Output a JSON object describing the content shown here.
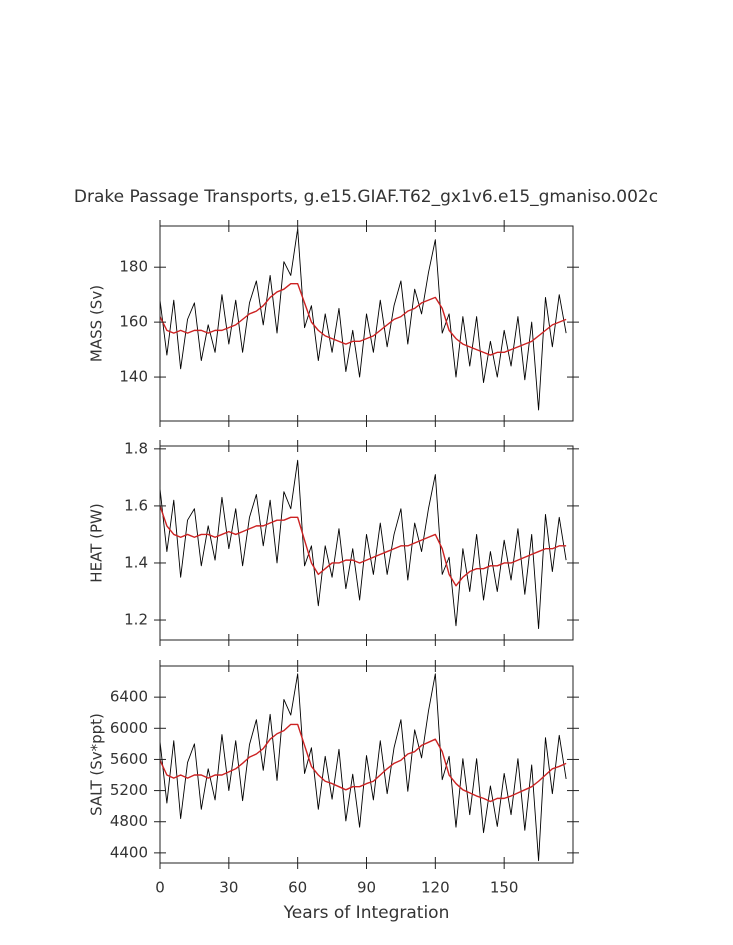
{
  "chart_data": [
    {
      "type": "line",
      "title": "Drake Passage Transports, g.e15.GIAF.T62_gx1v6.e15_gmaniso.002c",
      "ylabel": "MASS (Sv)",
      "x": [
        0,
        3,
        6,
        9,
        12,
        15,
        18,
        21,
        24,
        27,
        30,
        33,
        36,
        39,
        42,
        45,
        48,
        51,
        54,
        57,
        60,
        63,
        66,
        69,
        72,
        75,
        78,
        81,
        84,
        87,
        90,
        93,
        96,
        99,
        102,
        105,
        108,
        111,
        114,
        117,
        120,
        123,
        126,
        129,
        132,
        135,
        138,
        141,
        144,
        147,
        150,
        153,
        156,
        159,
        162,
        165,
        168,
        171,
        174,
        177
      ],
      "xlim": [
        0,
        180
      ],
      "xticks": [
        0,
        30,
        60,
        90,
        120,
        150
      ],
      "ylim": [
        124,
        195
      ],
      "yticks": [
        140,
        160,
        180
      ],
      "series": [
        {
          "color": "#000000",
          "values": [
            168,
            148,
            168,
            143,
            161,
            167,
            146,
            159,
            149,
            170,
            152,
            168,
            149,
            167,
            175,
            159,
            177,
            156,
            182,
            177,
            194,
            158,
            166,
            146,
            163,
            149,
            165,
            142,
            157,
            140,
            163,
            149,
            168,
            151,
            166,
            175,
            152,
            172,
            163,
            178,
            190,
            156,
            163,
            140,
            162,
            144,
            162,
            138,
            153,
            140,
            157,
            144,
            162,
            139,
            160,
            128,
            169,
            151,
            170,
            156
          ]
        },
        {
          "color": "#cc2222",
          "values": [
            162,
            157,
            156,
            157,
            156,
            157,
            157,
            156,
            157,
            157,
            158,
            159,
            161,
            163,
            164,
            166,
            169,
            171,
            172,
            174,
            174,
            167,
            160,
            157,
            155,
            154,
            153,
            152,
            153,
            153,
            154,
            155,
            157,
            159,
            161,
            162,
            164,
            165,
            167,
            168,
            169,
            165,
            157,
            154,
            152,
            151,
            150,
            149,
            148,
            149,
            149,
            150,
            151,
            152,
            153,
            155,
            157,
            159,
            160,
            161
          ]
        }
      ]
    },
    {
      "type": "line",
      "ylabel": "HEAT (PW)",
      "x": [
        0,
        3,
        6,
        9,
        12,
        15,
        18,
        21,
        24,
        27,
        30,
        33,
        36,
        39,
        42,
        45,
        48,
        51,
        54,
        57,
        60,
        63,
        66,
        69,
        72,
        75,
        78,
        81,
        84,
        87,
        90,
        93,
        96,
        99,
        102,
        105,
        108,
        111,
        114,
        117,
        120,
        123,
        126,
        129,
        132,
        135,
        138,
        141,
        144,
        147,
        150,
        153,
        156,
        159,
        162,
        165,
        168,
        171,
        174,
        177
      ],
      "xlim": [
        0,
        180
      ],
      "xticks": [
        0,
        30,
        60,
        90,
        120,
        150
      ],
      "ylim": [
        1.13,
        1.81
      ],
      "yticks": [
        1.2,
        1.4,
        1.6,
        1.8
      ],
      "series": [
        {
          "color": "#000000",
          "values": [
            1.66,
            1.44,
            1.62,
            1.35,
            1.55,
            1.59,
            1.39,
            1.53,
            1.41,
            1.63,
            1.45,
            1.59,
            1.39,
            1.56,
            1.64,
            1.46,
            1.62,
            1.4,
            1.65,
            1.59,
            1.76,
            1.39,
            1.46,
            1.25,
            1.46,
            1.35,
            1.52,
            1.31,
            1.45,
            1.27,
            1.5,
            1.36,
            1.54,
            1.36,
            1.5,
            1.59,
            1.34,
            1.54,
            1.44,
            1.59,
            1.71,
            1.36,
            1.42,
            1.18,
            1.45,
            1.3,
            1.5,
            1.27,
            1.44,
            1.3,
            1.48,
            1.34,
            1.52,
            1.29,
            1.5,
            1.17,
            1.57,
            1.37,
            1.56,
            1.41
          ]
        },
        {
          "color": "#cc2222",
          "values": [
            1.6,
            1.53,
            1.5,
            1.49,
            1.5,
            1.49,
            1.5,
            1.5,
            1.49,
            1.5,
            1.51,
            1.5,
            1.51,
            1.52,
            1.53,
            1.53,
            1.54,
            1.55,
            1.55,
            1.56,
            1.56,
            1.48,
            1.4,
            1.36,
            1.38,
            1.4,
            1.4,
            1.41,
            1.41,
            1.4,
            1.41,
            1.42,
            1.43,
            1.44,
            1.45,
            1.46,
            1.46,
            1.47,
            1.48,
            1.49,
            1.5,
            1.45,
            1.36,
            1.32,
            1.35,
            1.37,
            1.38,
            1.38,
            1.39,
            1.39,
            1.4,
            1.4,
            1.41,
            1.42,
            1.43,
            1.44,
            1.45,
            1.45,
            1.46,
            1.46
          ]
        }
      ]
    },
    {
      "type": "line",
      "ylabel": "SALT (Sv*ppt)",
      "xlabel": "Years of Integration",
      "x": [
        0,
        3,
        6,
        9,
        12,
        15,
        18,
        21,
        24,
        27,
        30,
        33,
        36,
        39,
        42,
        45,
        48,
        51,
        54,
        57,
        60,
        63,
        66,
        69,
        72,
        75,
        78,
        81,
        84,
        87,
        90,
        93,
        96,
        99,
        102,
        105,
        108,
        111,
        114,
        117,
        120,
        123,
        126,
        129,
        132,
        135,
        138,
        141,
        144,
        147,
        150,
        153,
        156,
        159,
        162,
        165,
        168,
        171,
        174,
        177
      ],
      "xlim": [
        0,
        180
      ],
      "xticks": [
        0,
        30,
        60,
        90,
        120,
        150
      ],
      "ylim": [
        4270,
        6800
      ],
      "yticks": [
        4400,
        4800,
        5200,
        5600,
        6000,
        6400
      ],
      "series": [
        {
          "color": "#000000",
          "values": [
            5830,
            5040,
            5840,
            4840,
            5560,
            5800,
            4960,
            5480,
            5080,
            5920,
            5200,
            5840,
            5070,
            5790,
            6110,
            5460,
            6180,
            5330,
            6370,
            6170,
            6700,
            5420,
            5750,
            4960,
            5640,
            5090,
            5730,
            4810,
            5410,
            4730,
            5650,
            5080,
            5840,
            5160,
            5750,
            6110,
            5190,
            5980,
            5620,
            6220,
            6700,
            5340,
            5640,
            4730,
            5610,
            4890,
            5610,
            4660,
            5260,
            4740,
            5420,
            4890,
            5610,
            4690,
            5530,
            4300,
            5880,
            5160,
            5910,
            5350
          ]
        },
        {
          "color": "#cc2222",
          "values": [
            5590,
            5400,
            5360,
            5400,
            5360,
            5400,
            5400,
            5360,
            5400,
            5400,
            5440,
            5480,
            5550,
            5630,
            5670,
            5740,
            5860,
            5930,
            5970,
            6050,
            6050,
            5780,
            5510,
            5400,
            5320,
            5290,
            5250,
            5210,
            5250,
            5250,
            5290,
            5320,
            5400,
            5480,
            5550,
            5590,
            5670,
            5700,
            5780,
            5820,
            5860,
            5700,
            5400,
            5290,
            5210,
            5170,
            5130,
            5100,
            5060,
            5100,
            5100,
            5130,
            5170,
            5210,
            5250,
            5320,
            5400,
            5480,
            5510,
            5550
          ]
        }
      ]
    }
  ]
}
